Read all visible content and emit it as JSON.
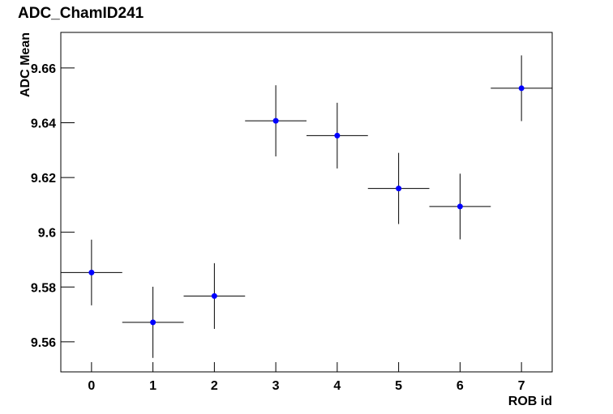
{
  "chart_data": {
    "type": "errorbar",
    "title": "ADC_ChamID241",
    "xlabel": "ROB id",
    "ylabel": "ADC Mean",
    "x": [
      0,
      1,
      2,
      3,
      4,
      5,
      6,
      7
    ],
    "values": [
      9.5853,
      9.5671,
      9.5767,
      9.6407,
      9.6353,
      9.616,
      9.6094,
      9.6526
    ],
    "yerr": [
      0.012,
      0.013,
      0.012,
      0.013,
      0.012,
      0.013,
      0.012,
      0.012
    ],
    "xerr": [
      0.5,
      0.5,
      0.5,
      0.5,
      0.5,
      0.5,
      0.5,
      0.5
    ],
    "color": "#0000ff",
    "xlim": [
      -0.5,
      7.5
    ],
    "xticks": [
      0,
      1,
      2,
      3,
      4,
      5,
      6,
      7
    ],
    "ylim": [
      9.549,
      9.673
    ],
    "yticks": [
      9.56,
      9.58,
      9.6,
      9.62,
      9.64,
      9.66
    ]
  }
}
